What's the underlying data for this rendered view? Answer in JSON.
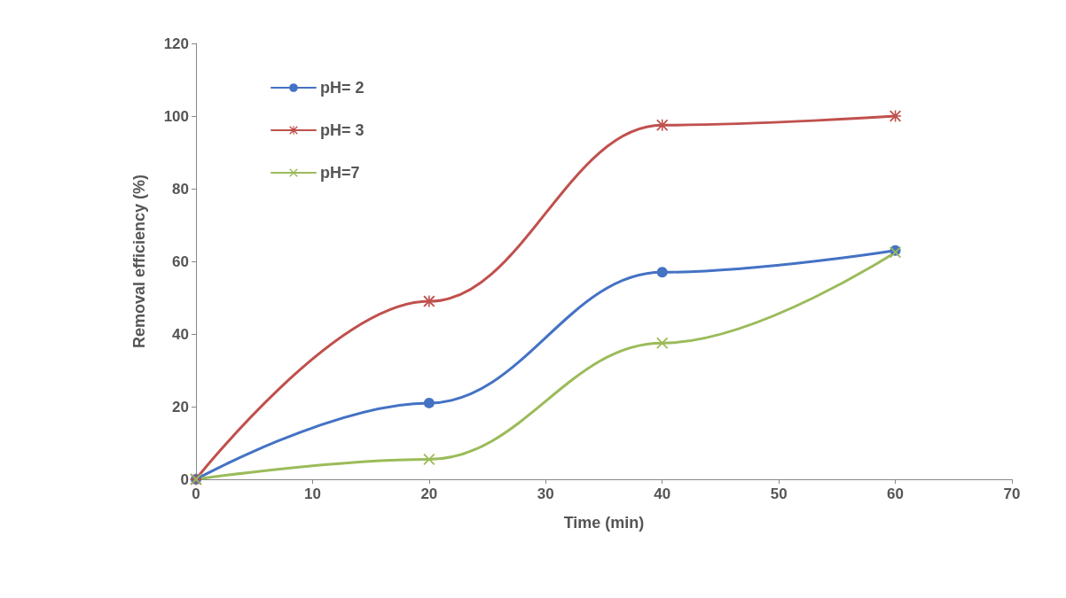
{
  "chart_data": {
    "type": "line",
    "xlabel": "Time (min)",
    "ylabel": "Removal efficiency (%)",
    "x": [
      0,
      20,
      40,
      60
    ],
    "series": [
      {
        "name": "pH= 2",
        "color": "#4472c4",
        "marker": "circle",
        "values": [
          0,
          21,
          57,
          63
        ]
      },
      {
        "name": "pH= 3",
        "color": "#c0504d",
        "marker": "star",
        "values": [
          0,
          49,
          97.5,
          100
        ]
      },
      {
        "name": "pH=7",
        "color": "#9bbb59",
        "marker": "cross",
        "values": [
          0,
          5.5,
          37.5,
          62.5
        ]
      }
    ],
    "xlim": [
      0,
      70
    ],
    "xticks": [
      0,
      10,
      20,
      30,
      40,
      50,
      60,
      70
    ],
    "ylim": [
      0,
      120
    ],
    "yticks": [
      0,
      20,
      40,
      60,
      80,
      100,
      120
    ],
    "grid": false,
    "legend": "top left",
    "line_style": "solid"
  }
}
